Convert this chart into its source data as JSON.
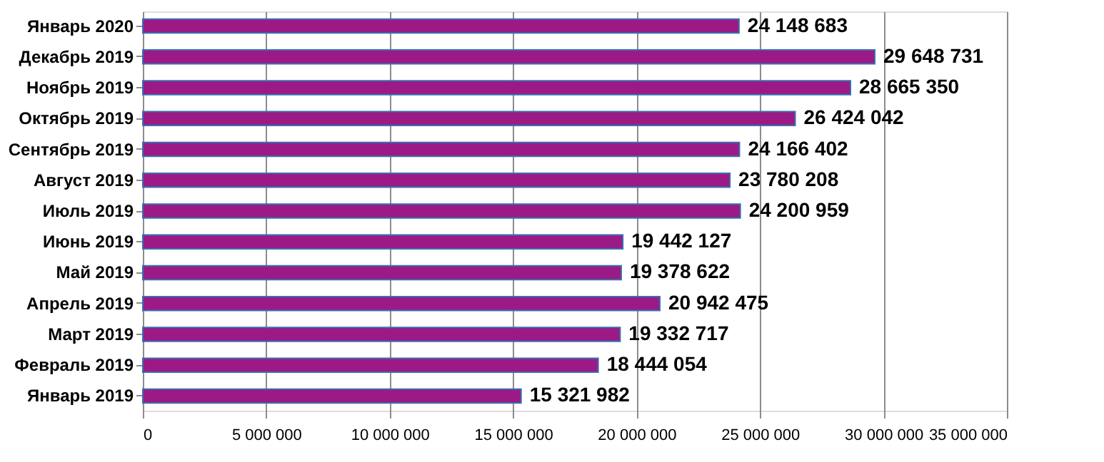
{
  "chart_data": {
    "type": "bar",
    "orientation": "horizontal",
    "categories": [
      "Январь 2020",
      "Декабрь 2019",
      "Ноябрь 2019",
      "Октябрь 2019",
      "Сентябрь 2019",
      "Август 2019",
      "Июль 2019",
      "Июнь 2019",
      "Май 2019",
      "Апрель 2019",
      "Март 2019",
      "Февраль 2019",
      "Январь 2019"
    ],
    "values": [
      24148683,
      29648731,
      28665350,
      26424042,
      24166402,
      23780208,
      24200959,
      19442127,
      19378622,
      20942475,
      19332717,
      18444054,
      15321982
    ],
    "value_labels": [
      "24 148 683",
      "29 648 731",
      "28 665 350",
      "26 424 042",
      "24 166 402",
      "23 780 208",
      "24 200 959",
      "19 442 127",
      "19 378 622",
      "20 942 475",
      "19 332 717",
      "18 444 054",
      "15 321 982"
    ],
    "color": "#9c1a86",
    "xlim": [
      0,
      35000000
    ],
    "xticks": [
      0,
      {
        "value": 5000000,
        "label": "5 000 000"
      },
      {
        "value": 10000000,
        "label": "10 000 000"
      },
      {
        "value": 15000000,
        "label": "15 000 000"
      },
      {
        "value": 20000000,
        "label": "20 000 000"
      },
      {
        "value": 25000000,
        "label": "25 000 000"
      },
      {
        "value": 30000000,
        "label": "30 000 000"
      },
      {
        "value": 35000000,
        "label": "35 000 000"
      }
    ],
    "grid": "x"
  }
}
